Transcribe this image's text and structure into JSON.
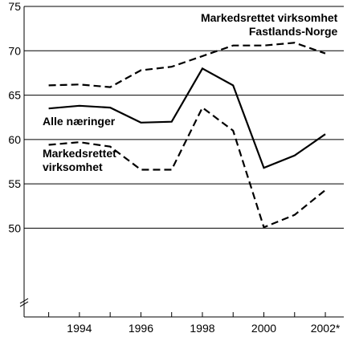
{
  "chart_data": {
    "type": "line",
    "x": [
      1993,
      1994,
      1995,
      1996,
      1997,
      1998,
      1999,
      2000,
      2001,
      2002
    ],
    "x_tick_values": [
      1994,
      1996,
      1998,
      2000,
      2002
    ],
    "x_tick_labels": [
      "1994",
      "1996",
      "1998",
      "2000",
      "2002*"
    ],
    "xlim": [
      1992.2,
      2002.6
    ],
    "ylim": [
      40,
      75
    ],
    "y_ticks": [
      50,
      55,
      60,
      65,
      70,
      75
    ],
    "y_axis_break": true,
    "grid": "horizontal",
    "legend": "none",
    "series": [
      {
        "style": "dashed",
        "values": [
          66.1,
          66.2,
          65.9,
          67.8,
          68.2,
          69.4,
          70.6,
          70.6,
          70.9,
          69.7
        ]
      },
      {
        "style": "solid",
        "values": [
          63.5,
          63.8,
          63.6,
          61.9,
          62.0,
          68.0,
          66.1,
          56.8,
          58.2,
          60.6
        ]
      },
      {
        "style": "dashed",
        "values": [
          59.4,
          59.7,
          59.2,
          56.6,
          56.6,
          63.6,
          61.0,
          50.1,
          51.5,
          54.3
        ]
      }
    ],
    "annotations": [
      {
        "lines": [
          "Markedsrettet virksomhet",
          "Fastlands-Norge"
        ],
        "x": 2002.4,
        "y": 73.3,
        "anchor": "end"
      },
      {
        "lines": [
          "Alle næringer"
        ],
        "x": 1992.8,
        "y": 61.6,
        "anchor": "start"
      },
      {
        "lines": [
          "Markedsrettet",
          "virksomhet"
        ],
        "x": 1992.8,
        "y": 58.0,
        "anchor": "start"
      }
    ],
    "colors": {
      "line": "#000000",
      "grid": "#000000"
    }
  }
}
